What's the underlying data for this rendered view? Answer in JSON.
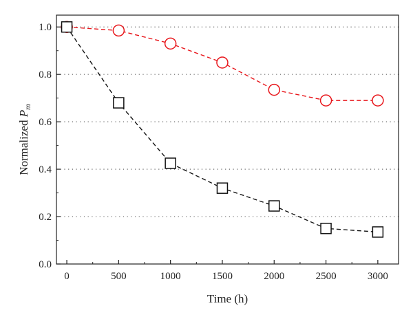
{
  "chart_data": {
    "type": "line",
    "xlabel": "Time (h)",
    "ylabel_text": "Normalized ",
    "ylabel_symbol": "P",
    "ylabel_subscript": "m",
    "xlim": [
      -100,
      3200
    ],
    "ylim": [
      0,
      1.05
    ],
    "xticks": [
      0,
      500,
      1000,
      1500,
      2000,
      2500,
      3000
    ],
    "yticks": [
      0.0,
      0.2,
      0.4,
      0.6,
      0.8,
      1.0
    ],
    "xtick_labels": [
      "0",
      "500",
      "1000",
      "1500",
      "2000",
      "2500",
      "3000"
    ],
    "ytick_labels": [
      "0.0",
      "0.2",
      "0.4",
      "0.6",
      "0.8",
      "1.0"
    ],
    "grid": "horizontal-dotted",
    "series": [
      {
        "marker": "circle",
        "color": "#e8161b",
        "line_style": "dashed",
        "x": [
          0,
          500,
          1000,
          1500,
          2000,
          2500,
          3000
        ],
        "values": [
          1.0,
          0.985,
          0.93,
          0.85,
          0.735,
          0.69,
          0.69
        ]
      },
      {
        "marker": "square",
        "color": "#111111",
        "line_style": "dashed",
        "x": [
          0,
          500,
          1000,
          1500,
          2000,
          2500,
          3000
        ],
        "values": [
          1.0,
          0.68,
          0.425,
          0.32,
          0.245,
          0.15,
          0.135
        ]
      }
    ]
  }
}
